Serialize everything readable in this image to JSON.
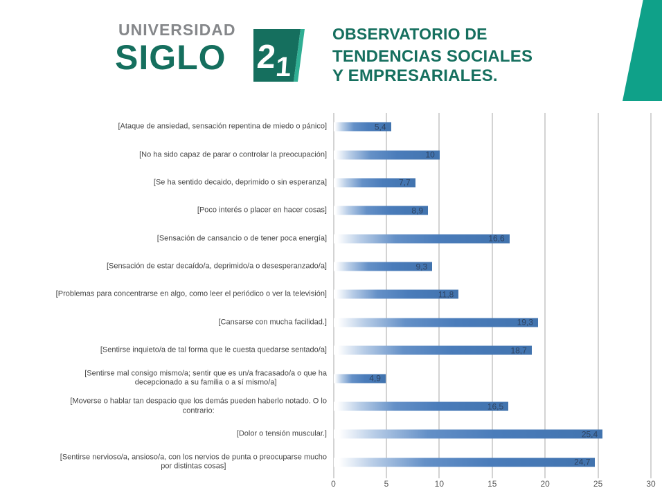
{
  "header": {
    "university_top": "UNIVERSIDAD",
    "university_main": "SIGLO",
    "logo_number_2": "2",
    "logo_number_1": "1",
    "org_line1": "OBSERVATORIO DE",
    "org_line2": "TENDENCIAS SOCIALES",
    "org_line3": "Y EMPRESARIALES."
  },
  "colors": {
    "brand_green": "#156f5e",
    "brand_teal": "#0fa189",
    "logo_gray": "#85878a",
    "bar_blue": "#4a7cba",
    "bar_blue_dark": "#4173ae",
    "bar_fade_mid": "#6490c7",
    "bar_fade_light": "#b8cde7",
    "value_label": "#2f4462",
    "gridline": "#d3d3d3",
    "tick_label": "#595959",
    "category_label": "#454545"
  },
  "chart_data": {
    "type": "bar",
    "orientation": "horizontal",
    "title": "",
    "xlabel": "",
    "ylabel": "",
    "xlim": [
      0,
      30
    ],
    "x_ticks": [
      0,
      5,
      10,
      15,
      20,
      25,
      30
    ],
    "grid": true,
    "legend": false,
    "categories": [
      "[Ataque de ansiedad, sensación repentina de miedo o pánico]",
      "[No ha sido capaz de parar o controlar la preocupación]",
      "[Se ha sentido decaido, deprimido o sin esperanza]",
      "[Poco interés o placer en hacer cosas]",
      "[Sensación de cansancio o de tener poca energía]",
      "[Sensación de estar decaído/a, deprimido/a o desesperanzado/a]",
      "[Problemas para concentrarse en algo, como leer el periódico o ver la televisión]",
      "[Cansarse con mucha facilidad.]",
      "[Sentirse inquieto/a de tal forma que le cuesta quedarse sentado/a]",
      "[Sentirse mal consigo mismo/a; sentir que es un/a fracasado/a o que ha\ndecepcionado a su familia o a sí mismo/a]",
      "[Moverse o hablar tan despacio que los demás pueden haberlo notado. O lo\ncontrario:",
      "[Dolor o tensión muscular.]",
      "[Sentirse nervioso/a, ansioso/a, con los nervios de punta o preocuparse mucho\npor distintas cosas]"
    ],
    "values": [
      5.4,
      10,
      7.7,
      8.9,
      16.6,
      9.3,
      11.8,
      19.3,
      18.7,
      4.9,
      16.5,
      25.4,
      24.7
    ],
    "value_labels": [
      "5,4",
      "10",
      "7,7",
      "8,9",
      "16,6",
      "9,3",
      "11,8",
      "19,3",
      "18,7",
      "4,9",
      "16,5",
      "25,4",
      "24,7"
    ]
  }
}
